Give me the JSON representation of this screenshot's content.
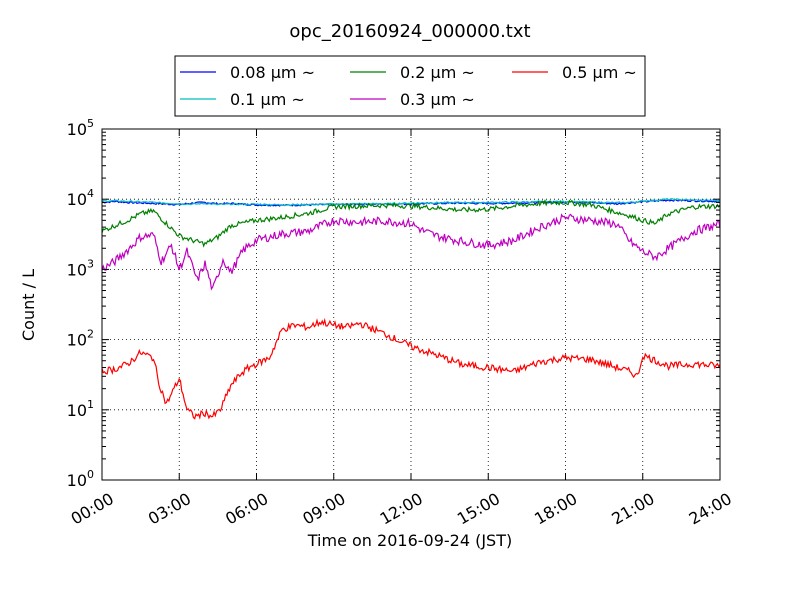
{
  "chart_data": {
    "type": "line",
    "title": "opc_20160924_000000.txt",
    "xlabel": "Time on 2016-09-24 (JST)",
    "ylabel": "Count / L",
    "y_scale": "log",
    "ylim": [
      1,
      100000
    ],
    "xlim": [
      "00:00",
      "24:00"
    ],
    "x_unit": "hour",
    "grid": true,
    "legend_position": "top",
    "x_ticks": [
      "00:00",
      "03:00",
      "06:00",
      "09:00",
      "12:00",
      "15:00",
      "18:00",
      "21:00",
      "24:00"
    ],
    "y_ticks": [
      {
        "base": "10",
        "exp": "0"
      },
      {
        "base": "10",
        "exp": "1"
      },
      {
        "base": "10",
        "exp": "2"
      },
      {
        "base": "10",
        "exp": "3"
      },
      {
        "base": "10",
        "exp": "4"
      },
      {
        "base": "10",
        "exp": "5"
      }
    ],
    "series": [
      {
        "name": "0.08 μm ~",
        "color": "#0000ff",
        "x": [
          0,
          0.5,
          1,
          2,
          3,
          3.5,
          4,
          4.5,
          5,
          6,
          7,
          8,
          9,
          10,
          11,
          12,
          13,
          14,
          15,
          16,
          17,
          18,
          19,
          20,
          20.5,
          21,
          22,
          23,
          24
        ],
        "values": [
          9000,
          9300,
          9000,
          8700,
          8400,
          8800,
          9000,
          8600,
          8700,
          8300,
          8200,
          8300,
          8400,
          8500,
          8500,
          8600,
          8700,
          8800,
          8700,
          8800,
          9000,
          9200,
          8900,
          8600,
          8900,
          9200,
          9700,
          9500,
          9300
        ]
      },
      {
        "name": "0.1 μm ~",
        "color": "#00bfbf",
        "x": [
          0,
          0.5,
          1,
          2,
          3,
          3.5,
          4,
          4.5,
          5,
          6,
          7,
          8,
          9,
          10,
          11,
          12,
          13,
          14,
          15,
          16,
          17,
          18,
          19,
          20,
          20.5,
          21,
          22,
          23,
          24
        ],
        "values": [
          9400,
          9500,
          9300,
          9000,
          8600,
          8500,
          8700,
          8400,
          8500,
          8500,
          8300,
          8400,
          8500,
          8600,
          8600,
          8800,
          8900,
          9000,
          9000,
          9100,
          9200,
          9300,
          9100,
          8900,
          9000,
          9400,
          10000,
          9700,
          9600
        ]
      },
      {
        "name": "0.2 μm ~",
        "color": "#008000",
        "x": [
          0,
          0.5,
          1,
          1.5,
          2,
          2.5,
          3,
          3.5,
          4,
          4.5,
          5,
          6,
          7,
          8,
          9,
          10,
          11,
          12,
          13,
          14,
          15,
          16,
          17,
          18,
          19,
          20,
          20.5,
          21,
          21.5,
          22,
          23,
          24
        ],
        "values": [
          3500,
          4200,
          5000,
          6200,
          6800,
          4500,
          3000,
          2600,
          2300,
          2900,
          4200,
          5000,
          5500,
          6300,
          7800,
          8000,
          8200,
          8000,
          7500,
          7000,
          7200,
          8000,
          8700,
          9000,
          8300,
          6500,
          5800,
          5000,
          4500,
          6200,
          7800,
          8000
        ]
      },
      {
        "name": "0.3 μm ~",
        "color": "#bf00bf",
        "x": [
          0,
          0.5,
          1,
          1.5,
          2,
          2.3,
          2.7,
          3,
          3.3,
          3.7,
          4,
          4.3,
          4.7,
          5,
          5.5,
          6,
          7,
          8,
          9,
          10,
          11,
          12,
          12.5,
          13,
          14,
          15,
          16,
          17,
          18,
          19,
          20,
          20.5,
          21,
          21.5,
          22,
          23,
          24
        ],
        "values": [
          1000,
          1300,
          1900,
          2900,
          3100,
          1300,
          2200,
          1000,
          1800,
          700,
          1200,
          500,
          1400,
          900,
          1900,
          2600,
          3200,
          3500,
          5000,
          4700,
          4900,
          4500,
          3500,
          3000,
          2500,
          2200,
          2600,
          4000,
          5500,
          5000,
          4400,
          2500,
          1800,
          1500,
          2000,
          3500,
          4400
        ]
      },
      {
        "name": "0.5 μm ~",
        "color": "#ff0000",
        "x": [
          0,
          0.5,
          1,
          1.5,
          2,
          2.2,
          2.5,
          2.8,
          3,
          3.3,
          3.6,
          4,
          4.3,
          4.6,
          5,
          5.4,
          5.8,
          6,
          6.5,
          7,
          7.5,
          8,
          8.5,
          9,
          9.5,
          10,
          11,
          12,
          13,
          14,
          15,
          16,
          17,
          18,
          19,
          20,
          20.5,
          20.8,
          21,
          22,
          23,
          24
        ],
        "values": [
          35,
          38,
          45,
          65,
          55,
          25,
          12,
          20,
          28,
          10,
          8,
          9,
          8,
          10,
          22,
          33,
          42,
          45,
          55,
          140,
          160,
          150,
          180,
          160,
          150,
          170,
          120,
          80,
          60,
          44,
          40,
          35,
          48,
          55,
          52,
          40,
          35,
          30,
          60,
          42,
          45,
          42
        ]
      }
    ]
  }
}
